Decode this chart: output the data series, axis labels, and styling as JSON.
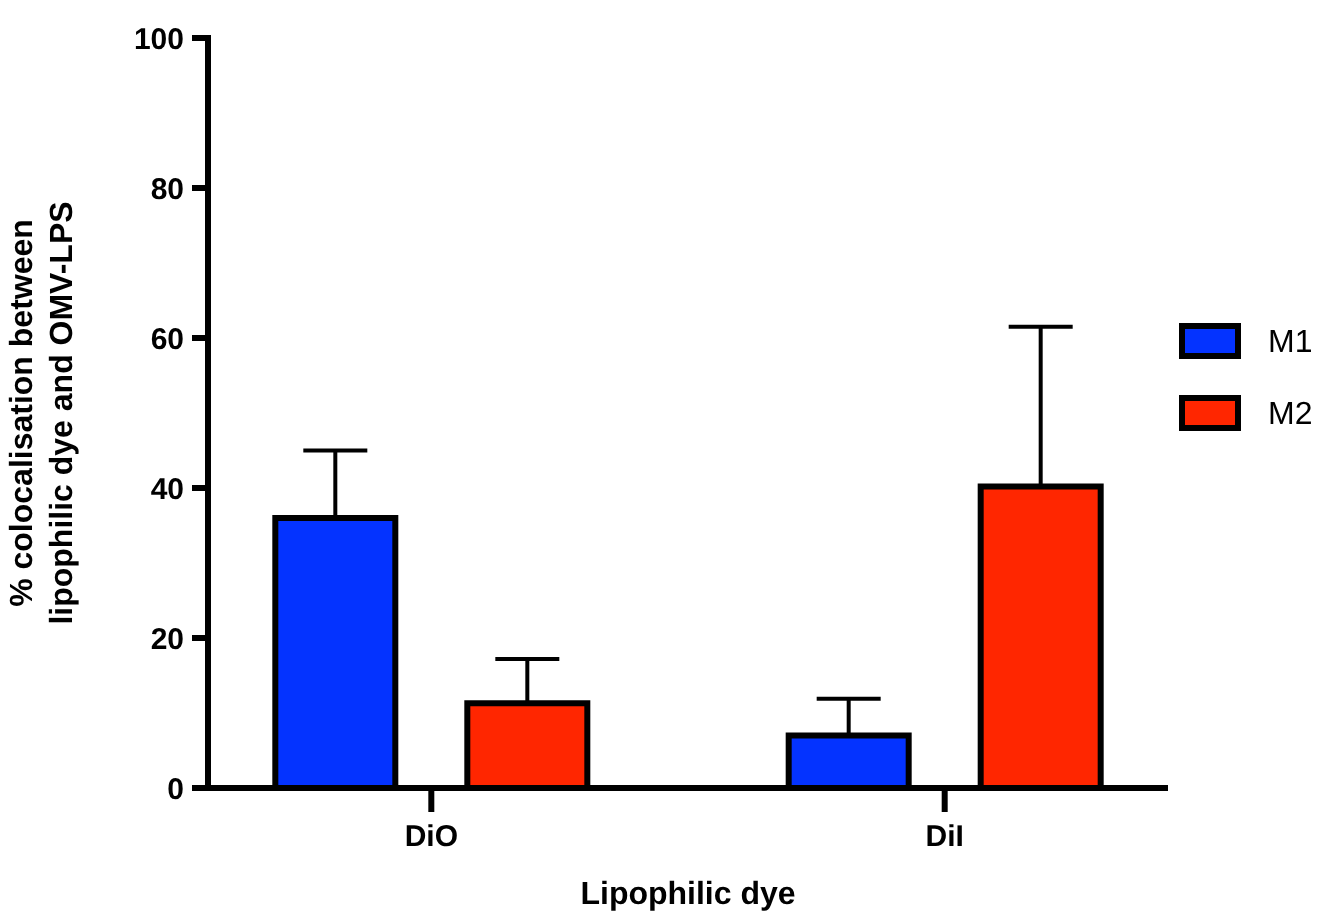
{
  "chart_data": {
    "type": "bar",
    "xlabel": "Lipophilic dye",
    "ylabel": "% colocalisation between\nlipophilic dye and OMV-LPS",
    "categories": [
      "DiO",
      "DiI"
    ],
    "series": [
      {
        "name": "M1",
        "color": "#0433ff",
        "values": [
          36.0,
          7.0
        ],
        "errors": [
          [
            36.0,
            45.0
          ],
          [
            7.0,
            11.9
          ]
        ]
      },
      {
        "name": "M2",
        "color": "#ff2600",
        "values": [
          11.3,
          40.2
        ],
        "errors": [
          [
            11.3,
            17.2
          ],
          [
            40.2,
            61.5
          ]
        ]
      }
    ],
    "ylim": [
      0,
      100
    ],
    "yticks": [
      0,
      20,
      40,
      60,
      80,
      100
    ],
    "legend": "right",
    "grid": false
  }
}
